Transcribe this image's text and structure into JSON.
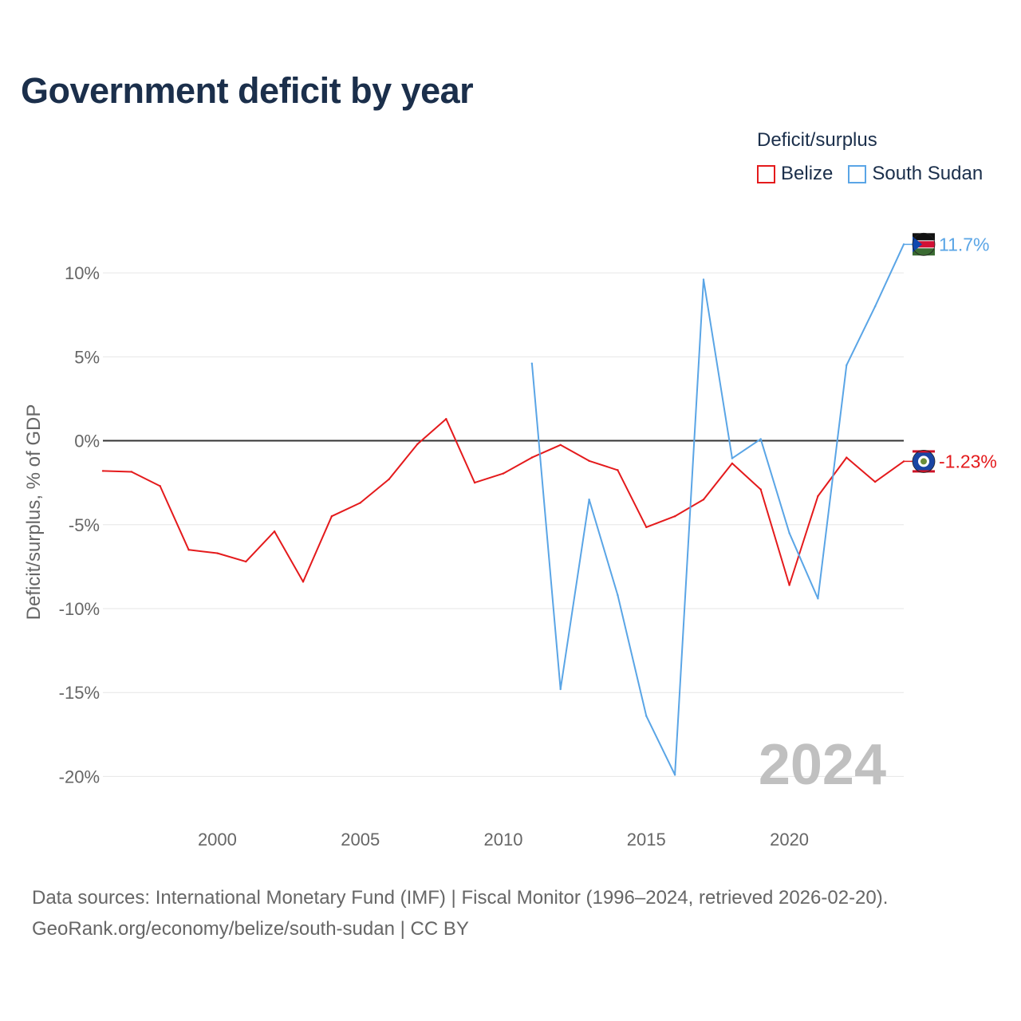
{
  "title": "Government deficit by year",
  "legend": {
    "title": "Deficit/surplus",
    "items": [
      {
        "label": "Belize",
        "color": "#e41a1c"
      },
      {
        "label": "South Sudan",
        "color": "#5aa5e6"
      }
    ]
  },
  "footer": {
    "line1": "Data sources: International Monetary Fund (IMF) | Fiscal Monitor (1996–2024, retrieved 2026-02-20).",
    "line2": "GeoRank.org/economy/belize/south-sudan | CC BY"
  },
  "chart_data": {
    "type": "line",
    "title": "Government deficit by year",
    "ylabel": "Deficit/surplus, % of GDP",
    "xlabel": "",
    "xlim": [
      1996,
      2024
    ],
    "ylim": [
      -21.5,
      12
    ],
    "y_ticks": [
      10,
      5,
      0,
      -5,
      -10,
      -15,
      -20
    ],
    "y_tick_labels": [
      "10%",
      "5%",
      "0%",
      "-5%",
      "-10%",
      "-15%",
      "-20%"
    ],
    "x_ticks": [
      2000,
      2005,
      2010,
      2015,
      2020
    ],
    "x_tick_labels": [
      "2000",
      "2005",
      "2010",
      "2015",
      "2020"
    ],
    "grid": true,
    "watermark_year": "2024",
    "series": [
      {
        "name": "Belize",
        "color": "#e41a1c",
        "end_label": "-1.23%",
        "x": [
          1996,
          1997,
          1998,
          1999,
          2000,
          2001,
          2002,
          2003,
          2004,
          2005,
          2006,
          2007,
          2008,
          2009,
          2010,
          2011,
          2012,
          2013,
          2014,
          2015,
          2016,
          2017,
          2018,
          2019,
          2020,
          2021,
          2022,
          2023,
          2024
        ],
        "values": [
          -1.8,
          -1.85,
          -2.7,
          -6.5,
          -6.7,
          -7.2,
          -5.4,
          -8.4,
          -4.5,
          -3.7,
          -2.3,
          -0.2,
          1.3,
          -2.5,
          -1.95,
          -1.0,
          -0.25,
          -1.2,
          -1.75,
          -5.15,
          -4.5,
          -3.5,
          -1.35,
          -2.9,
          -8.6,
          -3.3,
          -1.0,
          -2.45,
          -1.23
        ]
      },
      {
        "name": "South Sudan",
        "color": "#5aa5e6",
        "end_label": "11.7%",
        "x": [
          2011,
          2012,
          2013,
          2014,
          2015,
          2016,
          2017,
          2018,
          2019,
          2020,
          2021,
          2022,
          2023,
          2024
        ],
        "values": [
          4.6,
          -14.8,
          -3.5,
          -9.2,
          -16.4,
          -19.9,
          9.6,
          -1.05,
          0.1,
          -5.5,
          -9.4,
          4.5,
          8.0,
          11.7
        ]
      }
    ]
  }
}
